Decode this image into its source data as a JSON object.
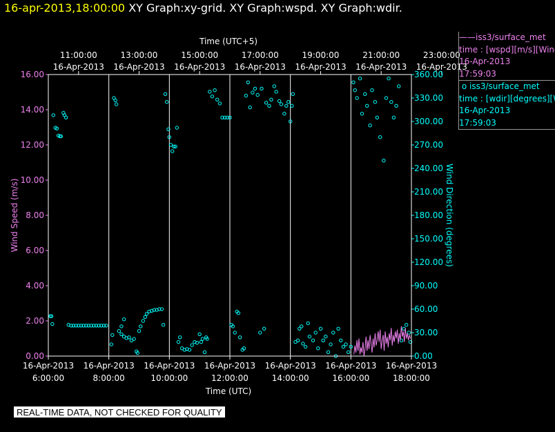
{
  "header": {
    "timestamp": "16-apr-2013,18:00:00",
    "titles": [
      "XY Graph:xy-grid.",
      "XY Graph:wspd.",
      "XY Graph:wdir."
    ]
  },
  "legend": [
    {
      "series": "iss3/surface_met",
      "marker": "line",
      "line2": "time : [wspd][m/s][Wind",
      "date": "16-Apr-2013",
      "time": "17:59:03",
      "color": "#ee82ee"
    },
    {
      "series": "iss3/surface_met",
      "marker": "circle",
      "line2": "time : [wdir][degrees][W",
      "date": "16-Apr-2013",
      "time": "17:59:03",
      "color": "#00ffff"
    }
  ],
  "note": "REAL-TIME DATA, NOT CHECKED FOR QUALITY",
  "chart_data": {
    "type": "scatter",
    "colors": {
      "wspd": "#ee82ee",
      "wdir": "#00ffff",
      "grid": "#ffffff",
      "axes": "#ffffff"
    },
    "top_axis": {
      "title": "Time (UTC+5)",
      "ticks": [
        {
          "time": "11:00:00",
          "date": "16-Apr-2013"
        },
        {
          "time": "13:00:00",
          "date": "16-Apr-2013"
        },
        {
          "time": "15:00:00",
          "date": "16-Apr-2013"
        },
        {
          "time": "17:00:00",
          "date": "16-Apr-2013"
        },
        {
          "time": "19:00:00",
          "date": "16-Apr-2013"
        },
        {
          "time": "21:00:00",
          "date": "16-Apr-2013"
        },
        {
          "time": "23:00:00",
          "date": "16-Apr-2013"
        }
      ]
    },
    "bottom_axis": {
      "title": "Time (UTC)",
      "range": [
        "16-Apr-2013 06:00",
        "16-Apr-2013 18:00"
      ],
      "ticks": [
        {
          "time": "6:00:00",
          "date": "16-Apr-2013"
        },
        {
          "time": "8:00:00",
          "date": "16-Apr-2013"
        },
        {
          "time": "10:00:00",
          "date": "16-Apr-2013"
        },
        {
          "time": "12:00:00",
          "date": "16-Apr-2013"
        },
        {
          "time": "14:00:00",
          "date": "16-Apr-2013"
        },
        {
          "time": "16:00:00",
          "date": "16-Apr-2013"
        },
        {
          "time": "18:00:00",
          "date": "16-Apr-2013"
        }
      ]
    },
    "left_axis": {
      "title": "Wind Speed (m/s)",
      "ylim": [
        0,
        16
      ],
      "ticks": [
        "0.00",
        "2.00",
        "4.00",
        "6.00",
        "8.00",
        "10.00",
        "12.00",
        "14.00",
        "16.00"
      ]
    },
    "right_axis": {
      "title": "Wind Direction (degrees)",
      "ylim": [
        0,
        360
      ],
      "ticks": [
        "0.00",
        "30.00",
        "60.00",
        "90.00",
        "120.00",
        "150.00",
        "180.00",
        "210.00",
        "240.00",
        "270.00",
        "300.00",
        "330.00",
        "360.00"
      ]
    },
    "grid_x": true,
    "series": [
      {
        "name": "iss3/surface_met wdir",
        "marker": "circle",
        "axis": "right",
        "points": [
          [
            "06:04",
            51
          ],
          [
            "06:06",
            51
          ],
          [
            "06:08",
            41
          ],
          [
            "06:10",
            308
          ],
          [
            "06:14",
            292
          ],
          [
            "06:17",
            291
          ],
          [
            "06:20",
            282
          ],
          [
            "06:23",
            281
          ],
          [
            "06:25",
            281
          ],
          [
            "06:30",
            311
          ],
          [
            "06:32",
            308
          ],
          [
            "06:35",
            305
          ],
          [
            "06:40",
            40
          ],
          [
            "06:45",
            39
          ],
          [
            "06:50",
            39
          ],
          [
            "06:55",
            39
          ],
          [
            "07:00",
            39
          ],
          [
            "07:05",
            39
          ],
          [
            "07:10",
            39
          ],
          [
            "07:15",
            39
          ],
          [
            "07:20",
            39
          ],
          [
            "07:25",
            39
          ],
          [
            "07:30",
            39
          ],
          [
            "07:35",
            39
          ],
          [
            "07:40",
            39
          ],
          [
            "07:45",
            39
          ],
          [
            "07:50",
            39
          ],
          [
            "07:55",
            39
          ],
          [
            "08:05",
            15
          ],
          [
            "08:07",
            27
          ],
          [
            "08:10",
            330
          ],
          [
            "08:13",
            327
          ],
          [
            "08:15",
            322
          ],
          [
            "08:20",
            32
          ],
          [
            "08:25",
            28
          ],
          [
            "08:30",
            25
          ],
          [
            "08:35",
            23
          ],
          [
            "08:40",
            24
          ],
          [
            "08:45",
            20
          ],
          [
            "08:50",
            22
          ],
          [
            "08:55",
            6
          ],
          [
            "08:57",
            4
          ],
          [
            "08:30",
            47
          ],
          [
            "08:25",
            38
          ],
          [
            "09:00",
            32
          ],
          [
            "09:03",
            38
          ],
          [
            "09:08",
            45
          ],
          [
            "09:12",
            50
          ],
          [
            "09:15",
            54
          ],
          [
            "09:20",
            57
          ],
          [
            "09:25",
            58
          ],
          [
            "09:30",
            59
          ],
          [
            "09:35",
            59
          ],
          [
            "09:40",
            60
          ],
          [
            "09:45",
            60
          ],
          [
            "09:48",
            40
          ],
          [
            "09:52",
            335
          ],
          [
            "09:55",
            325
          ],
          [
            "09:58",
            290
          ],
          [
            "10:00",
            280
          ],
          [
            "10:03",
            270
          ],
          [
            "10:06",
            262
          ],
          [
            "10:09",
            268
          ],
          [
            "10:12",
            268
          ],
          [
            "10:15",
            292
          ],
          [
            "10:18",
            18
          ],
          [
            "10:21",
            24
          ],
          [
            "10:25",
            10
          ],
          [
            "10:30",
            8
          ],
          [
            "10:35",
            9
          ],
          [
            "10:40",
            8
          ],
          [
            "10:45",
            14
          ],
          [
            "10:50",
            18
          ],
          [
            "10:55",
            17
          ],
          [
            "11:00",
            28
          ],
          [
            "11:03",
            18
          ],
          [
            "11:06",
            22
          ],
          [
            "11:10",
            5
          ],
          [
            "11:13",
            24
          ],
          [
            "11:15",
            22
          ],
          [
            "11:20",
            338
          ],
          [
            "11:25",
            332
          ],
          [
            "11:30",
            340
          ],
          [
            "11:35",
            328
          ],
          [
            "11:40",
            323
          ],
          [
            "11:45",
            305
          ],
          [
            "11:50",
            305
          ],
          [
            "11:55",
            305
          ],
          [
            "12:00",
            305
          ],
          [
            "12:03",
            40
          ],
          [
            "12:06",
            38
          ],
          [
            "12:10",
            30
          ],
          [
            "12:14",
            57
          ],
          [
            "12:17",
            55
          ],
          [
            "12:20",
            24
          ],
          [
            "12:25",
            8
          ],
          [
            "12:28",
            10
          ],
          [
            "12:32",
            333
          ],
          [
            "12:36",
            350
          ],
          [
            "12:40",
            318
          ],
          [
            "12:45",
            337
          ],
          [
            "12:50",
            342
          ],
          [
            "12:55",
            334
          ],
          [
            "13:00",
            30
          ],
          [
            "13:03",
            342
          ],
          [
            "13:08",
            35
          ],
          [
            "13:12",
            324
          ],
          [
            "13:18",
            320
          ],
          [
            "13:22",
            328
          ],
          [
            "13:28",
            345
          ],
          [
            "13:32",
            338
          ],
          [
            "13:38",
            326
          ],
          [
            "13:42",
            322
          ],
          [
            "13:48",
            310
          ],
          [
            "13:52",
            320
          ],
          [
            "13:56",
            325
          ],
          [
            "14:00",
            300
          ],
          [
            "14:03",
            320
          ],
          [
            "14:05",
            335
          ],
          [
            "14:10",
            18
          ],
          [
            "14:15",
            20
          ],
          [
            "14:18",
            35
          ],
          [
            "14:22",
            38
          ],
          [
            "14:25",
            16
          ],
          [
            "14:30",
            12
          ],
          [
            "14:35",
            42
          ],
          [
            "14:38",
            25
          ],
          [
            "14:45",
            20
          ],
          [
            "14:50",
            30
          ],
          [
            "14:55",
            10
          ],
          [
            "15:00",
            35
          ],
          [
            "15:05",
            20
          ],
          [
            "15:10",
            25
          ],
          [
            "15:15",
            5
          ],
          [
            "15:20",
            15
          ],
          [
            "15:25",
            30
          ],
          [
            "15:30",
            0
          ],
          [
            "15:35",
            35
          ],
          [
            "15:40",
            20
          ],
          [
            "15:45",
            12
          ],
          [
            "15:50",
            15
          ],
          [
            "15:55",
            5
          ],
          [
            "16:00",
            12
          ],
          [
            "16:05",
            350
          ],
          [
            "16:08",
            340
          ],
          [
            "16:12",
            330
          ],
          [
            "16:18",
            355
          ],
          [
            "16:22",
            310
          ],
          [
            "16:28",
            335
          ],
          [
            "16:32",
            320
          ],
          [
            "16:38",
            295
          ],
          [
            "16:42",
            340
          ],
          [
            "16:48",
            325
          ],
          [
            "16:52",
            305
          ],
          [
            "16:58",
            280
          ],
          [
            "17:05",
            250
          ],
          [
            "17:10",
            330
          ],
          [
            "17:15",
            355
          ],
          [
            "17:20",
            325
          ],
          [
            "17:25",
            305
          ],
          [
            "17:30",
            320
          ],
          [
            "17:35",
            345
          ],
          [
            "17:40",
            20
          ],
          [
            "17:45",
            35
          ],
          [
            "17:50",
            40
          ],
          [
            "17:55",
            30
          ],
          [
            "17:58",
            18
          ]
        ]
      },
      {
        "name": "iss3/surface_met wspd",
        "marker": "line",
        "axis": "left",
        "points": [
          [
            "16:06",
            0.1
          ],
          [
            "16:08",
            0.6
          ],
          [
            "16:10",
            0.2
          ],
          [
            "16:12",
            0.9
          ],
          [
            "16:14",
            0.3
          ],
          [
            "16:16",
            1.0
          ],
          [
            "16:18",
            0.1
          ],
          [
            "16:20",
            0.5
          ],
          [
            "16:22",
            0.2
          ],
          [
            "16:24",
            0.8
          ],
          [
            "16:26",
            0.0
          ],
          [
            "16:28",
            0.4
          ],
          [
            "16:30",
            1.1
          ],
          [
            "16:32",
            0.3
          ],
          [
            "16:34",
            0.9
          ],
          [
            "16:36",
            0.4
          ],
          [
            "16:38",
            1.2
          ],
          [
            "16:40",
            0.7
          ],
          [
            "16:42",
            0.2
          ],
          [
            "16:44",
            1.0
          ],
          [
            "16:46",
            0.5
          ],
          [
            "16:48",
            1.3
          ],
          [
            "16:50",
            0.6
          ],
          [
            "16:52",
            0.9
          ],
          [
            "16:54",
            1.4
          ],
          [
            "16:56",
            0.8
          ],
          [
            "16:58",
            1.5
          ],
          [
            "17:00",
            0.4
          ],
          [
            "17:02",
            0.9
          ],
          [
            "17:04",
            1.2
          ],
          [
            "17:06",
            0.3
          ],
          [
            "17:08",
            1.4
          ],
          [
            "17:10",
            0.7
          ],
          [
            "17:12",
            1.1
          ],
          [
            "17:14",
            0.5
          ],
          [
            "17:16",
            1.3
          ],
          [
            "17:18",
            0.9
          ],
          [
            "17:20",
            1.6
          ],
          [
            "17:22",
            0.6
          ],
          [
            "17:24",
            1.2
          ],
          [
            "17:26",
            0.8
          ],
          [
            "17:28",
            1.4
          ],
          [
            "17:30",
            1.0
          ],
          [
            "17:32",
            1.5
          ],
          [
            "17:34",
            0.7
          ],
          [
            "17:36",
            1.3
          ],
          [
            "17:38",
            0.9
          ],
          [
            "17:40",
            1.7
          ],
          [
            "17:42",
            1.1
          ],
          [
            "17:44",
            1.4
          ],
          [
            "17:46",
            0.8
          ],
          [
            "17:48",
            1.6
          ],
          [
            "17:50",
            1.0
          ],
          [
            "17:52",
            1.3
          ],
          [
            "17:54",
            0.9
          ],
          [
            "17:56",
            1.2
          ],
          [
            "17:58",
            1.0
          ]
        ]
      }
    ]
  }
}
